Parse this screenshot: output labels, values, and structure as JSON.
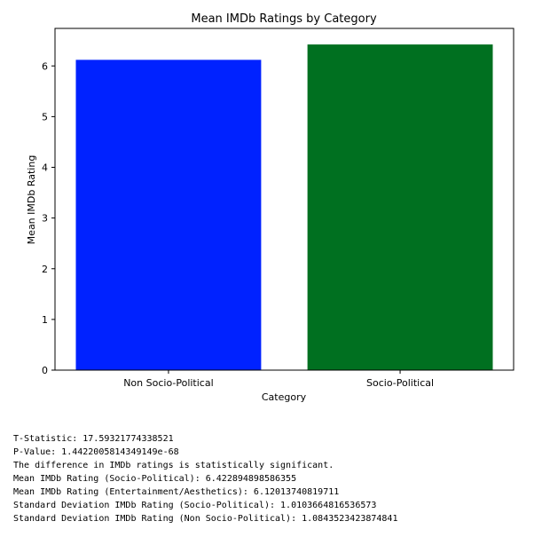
{
  "chart_data": {
    "type": "bar",
    "title": "Mean IMDb Ratings by Category",
    "xlabel": "Category",
    "ylabel": "Mean IMDb Rating",
    "categories": [
      "Non Socio-Political",
      "Socio-Political"
    ],
    "values": [
      6.12013740819711,
      6.422894898586355
    ],
    "colors": [
      "#0022ff",
      "#007020"
    ],
    "ylim": [
      0,
      6.74
    ],
    "yticks": [
      0,
      1,
      2,
      3,
      4,
      5,
      6
    ],
    "grid": false
  },
  "stats_lines": [
    "T-Statistic: 17.59321774338521",
    "P-Value: 1.4422005814349149e-68",
    "The difference in IMDb ratings is statistically significant.",
    "Mean IMDb Rating (Socio-Political): 6.422894898586355",
    "Mean IMDb Rating (Entertainment/Aesthetics): 6.12013740819711",
    "Standard Deviation IMDb Rating (Socio-Political): 1.0103664816536573",
    "Standard Deviation IMDb Rating (Non Socio-Political): 1.0843523423874841"
  ]
}
